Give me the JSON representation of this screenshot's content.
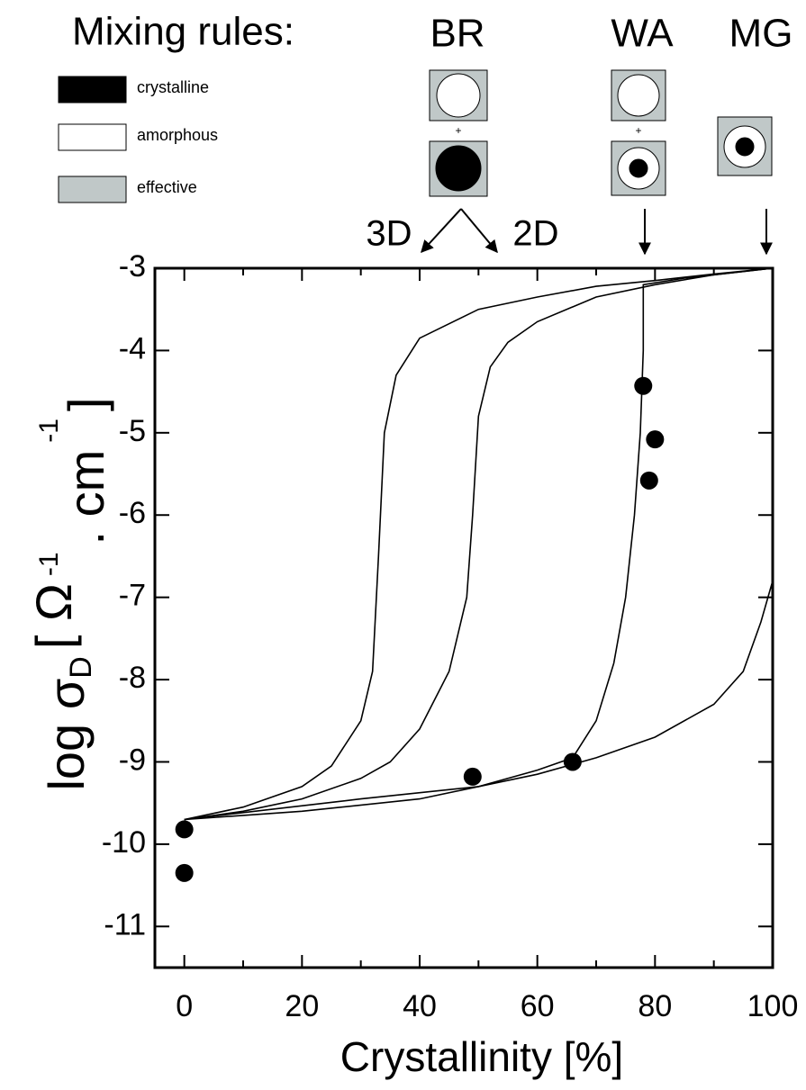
{
  "chart_data": {
    "type": "line",
    "title": "Mixing rules:",
    "legend": [
      {
        "label": "crystalline",
        "color": "#000000"
      },
      {
        "label": "amorphous",
        "color": "#ffffff"
      },
      {
        "label": "effective",
        "color": "#c0c8c8"
      }
    ],
    "annotations": [
      "BR",
      "WA",
      "MG",
      "3D",
      "2D"
    ],
    "xlabel": "Crystallinity [%]",
    "ylabel": [
      "log σ",
      "D",
      "[ Ω",
      "-1",
      ". cm",
      "-1",
      "]"
    ],
    "xlim": [
      -5,
      100
    ],
    "ylim": [
      -11.5,
      -3
    ],
    "xticks": [
      0,
      20,
      40,
      60,
      80,
      100
    ],
    "xminorticks": [
      10,
      30,
      50,
      70,
      90
    ],
    "yticks": [
      -3,
      -4,
      -5,
      -6,
      -7,
      -8,
      -9,
      -10,
      -11
    ],
    "series": [
      {
        "color": "#000000",
        "x": [
          0,
          10,
          20,
          25,
          30,
          32,
          33,
          34,
          36,
          40,
          50,
          60,
          70,
          80,
          90,
          100
        ],
        "values": [
          -9.7,
          -9.55,
          -9.3,
          -9.05,
          -8.5,
          -7.9,
          -6.5,
          -5.0,
          -4.3,
          -3.85,
          -3.5,
          -3.35,
          -3.22,
          -3.15,
          -3.07,
          -3.0
        ]
      },
      {
        "color": "#000000",
        "x": [
          0,
          10,
          20,
          30,
          35,
          40,
          45,
          48,
          49,
          50,
          52,
          55,
          60,
          70,
          80,
          90,
          100
        ],
        "values": [
          -9.7,
          -9.6,
          -9.45,
          -9.2,
          -9.0,
          -8.6,
          -7.9,
          -7.0,
          -6.0,
          -4.8,
          -4.2,
          -3.9,
          -3.65,
          -3.35,
          -3.2,
          -3.08,
          -3.0
        ]
      },
      {
        "color": "#000000",
        "x": [
          0,
          30,
          50,
          60,
          66,
          70,
          73,
          75,
          76.5,
          77.5,
          78,
          78,
          85,
          100
        ],
        "values": [
          -9.7,
          -9.45,
          -9.3,
          -9.1,
          -8.95,
          -8.5,
          -7.8,
          -7.0,
          -6.0,
          -5.0,
          -4.0,
          -3.2,
          -3.12,
          -3.0
        ]
      },
      {
        "color": "#000000",
        "x": [
          0,
          20,
          40,
          60,
          70,
          80,
          90,
          95,
          98,
          100
        ],
        "values": [
          -9.7,
          -9.6,
          -9.45,
          -9.15,
          -8.95,
          -8.7,
          -8.3,
          -7.9,
          -7.3,
          -6.8
        ]
      }
    ],
    "markers": {
      "color": "#000000",
      "x": [
        0,
        0,
        49,
        66,
        78,
        80,
        79
      ],
      "values": [
        -9.82,
        -10.35,
        -9.18,
        -9.0,
        -4.43,
        -5.08,
        -5.58
      ]
    }
  }
}
